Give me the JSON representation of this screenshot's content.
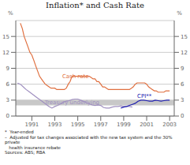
{
  "chart_data": {
    "type": "line",
    "title": "Inflation* and Cash Rate",
    "ylabel": "%",
    "y2label": "%",
    "xlim": [
      1989.6,
      2003.4
    ],
    "xticks": [
      1991,
      1993,
      1995,
      1997,
      1999,
      2001,
      2003
    ],
    "ylim": [
      0,
      18
    ],
    "yticks": [
      0,
      3,
      6,
      9,
      12,
      15
    ],
    "y2lim": [
      0,
      18
    ],
    "y2ticks": [
      0,
      3,
      6,
      9,
      12,
      15
    ],
    "grid": true,
    "bands": [
      {
        "from": 2,
        "to": 3,
        "color": "#c8c8c8"
      }
    ],
    "series": [
      {
        "color": "#a090c0",
        "x": [
          1989.75,
          1990.0,
          1990.25,
          1990.5,
          1990.75,
          1991.0,
          1991.25,
          1991.5,
          1991.75,
          1992.0,
          1992.25,
          1992.5,
          1992.75,
          1993.0,
          1993.25,
          1993.5,
          1993.75,
          1994.0,
          1994.25,
          1994.5,
          1994.75,
          1995.0,
          1995.25,
          1995.5,
          1995.75,
          1996.0,
          1996.25,
          1996.5,
          1996.75,
          1997.0,
          1997.25,
          1997.5,
          1997.75,
          1998.0,
          1998.25,
          1998.5,
          1998.75,
          1999.0,
          1999.25,
          1999.5,
          1999.75
        ],
        "values": [
          6.2,
          6.0,
          5.5,
          5.0,
          4.6,
          4.2,
          3.8,
          3.4,
          3.0,
          2.6,
          2.2,
          1.8,
          1.5,
          1.8,
          2.0,
          2.3,
          2.6,
          2.8,
          2.9,
          3.1,
          3.2,
          3.2,
          3.0,
          2.8,
          2.5,
          2.3,
          2.1,
          2.0,
          2.1,
          2.0,
          1.6,
          1.5,
          1.5,
          1.7,
          1.8,
          1.8,
          1.9,
          1.8,
          1.8,
          1.8,
          1.7
        ]
      },
      {
        "color": "#e07040",
        "x": [
          1990.0,
          1990.17,
          1990.33,
          1990.5,
          1990.67,
          1990.83,
          1991.0,
          1991.17,
          1991.33,
          1991.5,
          1991.67,
          1991.83,
          1992.0,
          1992.17,
          1992.33,
          1992.5,
          1992.67,
          1992.83,
          1993.0,
          1993.17,
          1993.33,
          1993.5,
          1993.67,
          1993.83,
          1994.0,
          1994.17,
          1994.33,
          1994.5,
          1994.67,
          1994.83,
          1995.0,
          1995.17,
          1995.33,
          1995.5,
          1995.67,
          1995.83,
          1996.0,
          1996.17,
          1996.33,
          1996.5,
          1996.67,
          1996.83,
          1997.0,
          1997.17,
          1997.33,
          1997.5,
          1997.67,
          1997.83,
          1998.0,
          1998.17,
          1998.33,
          1998.5,
          1998.67,
          1998.83,
          1999.0,
          1999.17,
          1999.33,
          1999.5,
          1999.67,
          1999.83,
          2000.0,
          2000.17,
          2000.33,
          2000.5,
          2000.67,
          2000.83,
          2001.0,
          2001.17,
          2001.33,
          2001.5,
          2001.67,
          2001.83,
          2002.0,
          2002.17,
          2002.33,
          2002.5,
          2002.67,
          2002.83,
          2003.0
        ],
        "values": [
          17.5,
          16.5,
          15.0,
          14.0,
          13.0,
          12.0,
          11.5,
          10.5,
          9.5,
          8.5,
          7.5,
          7.0,
          6.5,
          6.0,
          5.75,
          5.5,
          5.25,
          5.25,
          5.25,
          5.0,
          5.0,
          5.0,
          5.0,
          5.0,
          5.25,
          6.0,
          6.5,
          7.5,
          7.5,
          7.5,
          7.5,
          7.5,
          7.5,
          7.5,
          7.5,
          7.5,
          7.5,
          7.25,
          7.0,
          7.0,
          6.5,
          6.5,
          6.0,
          5.5,
          5.5,
          5.25,
          5.0,
          5.0,
          5.0,
          5.0,
          5.0,
          5.0,
          5.0,
          5.0,
          5.0,
          5.0,
          5.0,
          5.0,
          5.25,
          5.5,
          6.0,
          6.25,
          6.25,
          6.25,
          6.25,
          6.25,
          6.0,
          5.5,
          5.25,
          5.0,
          4.75,
          4.75,
          4.5,
          4.5,
          4.5,
          4.5,
          4.75,
          4.75,
          4.75
        ]
      },
      {
        "color": "#2020b0",
        "x": [
          1998.75,
          1999.0,
          1999.25,
          1999.5,
          1999.75,
          2000.0,
          2000.25,
          2000.5,
          2000.75,
          2001.0,
          2001.25,
          2001.5,
          2001.75,
          2002.0,
          2002.25,
          2002.5,
          2002.75,
          2003.0
        ],
        "values": [
          1.5,
          1.7,
          1.8,
          2.0,
          2.2,
          2.4,
          2.8,
          3.0,
          3.0,
          2.9,
          2.8,
          2.8,
          3.0,
          2.9,
          2.8,
          2.9,
          3.0,
          3.0
        ]
      }
    ],
    "annotations": [
      {
        "text": "Cash rate",
        "x": 1994.8,
        "y": 7.0,
        "color": "#e07040"
      },
      {
        "text": "Treasury underlying",
        "x": 1994.5,
        "y": 2.05,
        "color": "#a090c0"
      },
      {
        "text": "CPI**",
        "x": 2000.8,
        "y": 3.2,
        "color": "#2020b0"
      }
    ],
    "footnote": [
      "*  Year-ended",
      "–  Adjusted for tax changes associated with the new tax system and the 30% private",
      "   health insurance rebate",
      "Sources: ABS; RBA"
    ]
  }
}
